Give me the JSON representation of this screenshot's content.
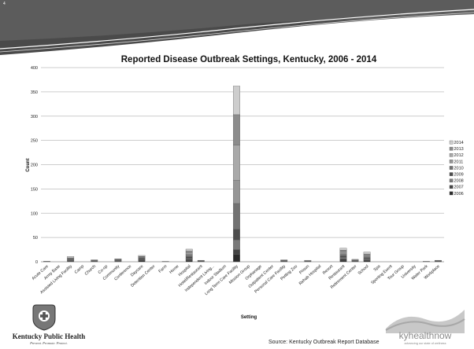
{
  "slide": {
    "number": "4"
  },
  "chart_data": {
    "type": "bar",
    "stacked": true,
    "title": "Reported Disease Outbreak Settings, Kentucky, 2006 - 2014",
    "xlabel": "Setting",
    "ylabel": "Count",
    "ylim": [
      0,
      400
    ],
    "yticks": [
      0,
      50,
      100,
      150,
      200,
      250,
      300,
      350,
      400
    ],
    "grid": true,
    "legend_position": "right",
    "categories": [
      "Acute Care",
      "Army Base",
      "Assisted Living Facility",
      "Camp",
      "Church",
      "Co-op",
      "Community",
      "Conference",
      "Daycare",
      "Detention Center",
      "Farm",
      "Home",
      "Hospital",
      "Hotel/Restaurant",
      "Independent Living...",
      "Indoor Stadium",
      "Long Term Care Facility",
      "Mission Group",
      "Orphanage",
      "Outpatient Center",
      "Personal Care Facility",
      "Petting Zoo",
      "Prison",
      "Rehab Hospital",
      "Resort",
      "Restaurant",
      "Retirement Center",
      "School",
      "Spa",
      "Sporting Event",
      "Tour Group",
      "University",
      "Water Park",
      "Workplace"
    ],
    "series": [
      {
        "name": "2006",
        "color": "#2b2b2b",
        "values": [
          0,
          0,
          1,
          0,
          1,
          0,
          1,
          0,
          2,
          0,
          0,
          0,
          2,
          1,
          0,
          0,
          15,
          0,
          0,
          0,
          1,
          0,
          0,
          0,
          0,
          3,
          1,
          2,
          0,
          0,
          0,
          0,
          0,
          1
        ]
      },
      {
        "name": "2007",
        "color": "#444444",
        "values": [
          1,
          0,
          1,
          0,
          0,
          0,
          0,
          0,
          2,
          0,
          0,
          0,
          3,
          0,
          0,
          0,
          10,
          0,
          0,
          0,
          0,
          0,
          1,
          0,
          0,
          3,
          0,
          2,
          0,
          0,
          0,
          0,
          0,
          0
        ]
      },
      {
        "name": "2008",
        "color": "#7a7a7a",
        "values": [
          0,
          0,
          1,
          0,
          1,
          0,
          1,
          0,
          1,
          0,
          0,
          0,
          2,
          1,
          0,
          0,
          20,
          0,
          0,
          0,
          1,
          0,
          0,
          0,
          0,
          3,
          1,
          2,
          0,
          0,
          0,
          0,
          0,
          1
        ]
      },
      {
        "name": "2009",
        "color": "#4d4d4d",
        "values": [
          0,
          0,
          1,
          0,
          0,
          0,
          1,
          0,
          2,
          0,
          0,
          0,
          3,
          0,
          0,
          0,
          22,
          0,
          0,
          0,
          0,
          0,
          0,
          0,
          0,
          3,
          0,
          2,
          0,
          0,
          0,
          0,
          0,
          0
        ]
      },
      {
        "name": "2010",
        "color": "#727272",
        "values": [
          0,
          0,
          1,
          0,
          0,
          0,
          1,
          0,
          1,
          0,
          0,
          0,
          3,
          1,
          0,
          0,
          53,
          0,
          0,
          0,
          1,
          0,
          1,
          0,
          0,
          3,
          1,
          2,
          0,
          0,
          0,
          0,
          1,
          1
        ]
      },
      {
        "name": "2011",
        "color": "#969696",
        "values": [
          0,
          0,
          1,
          0,
          1,
          0,
          1,
          0,
          1,
          0,
          0,
          0,
          3,
          0,
          0,
          0,
          48,
          0,
          0,
          0,
          0,
          0,
          0,
          0,
          0,
          3,
          0,
          2,
          0,
          0,
          0,
          0,
          0,
          0
        ]
      },
      {
        "name": "2012",
        "color": "#a9a9a9",
        "values": [
          0,
          0,
          1,
          0,
          0,
          0,
          1,
          0,
          1,
          0,
          1,
          0,
          3,
          0,
          0,
          0,
          72,
          0,
          0,
          0,
          1,
          0,
          0,
          0,
          0,
          3,
          1,
          2,
          0,
          0,
          0,
          0,
          0,
          0
        ]
      },
      {
        "name": "2013",
        "color": "#8c8c8c",
        "values": [
          0,
          0,
          1,
          0,
          1,
          0,
          0,
          0,
          1,
          0,
          0,
          0,
          3,
          0,
          0,
          0,
          63,
          0,
          0,
          0,
          0,
          0,
          0,
          0,
          0,
          3,
          0,
          2,
          0,
          0,
          0,
          0,
          0,
          0
        ]
      },
      {
        "name": "2014",
        "color": "#cdcdcd",
        "values": [
          0,
          0,
          3,
          0,
          0,
          0,
          0,
          0,
          2,
          0,
          0,
          0,
          4,
          0,
          0,
          0,
          59,
          0,
          0,
          0,
          0,
          0,
          1,
          0,
          0,
          4,
          1,
          4,
          0,
          0,
          0,
          0,
          0,
          0
        ]
      }
    ]
  },
  "footer": {
    "source": "Source: Kentucky Outbreak Report Database",
    "logo_left_name": "Kentucky Public Health",
    "logo_left_tagline": "Prevent. Promote. Protect.",
    "logo_right_name": "kyhealthnow",
    "logo_right_tagline": "advancing our state of wellness"
  }
}
